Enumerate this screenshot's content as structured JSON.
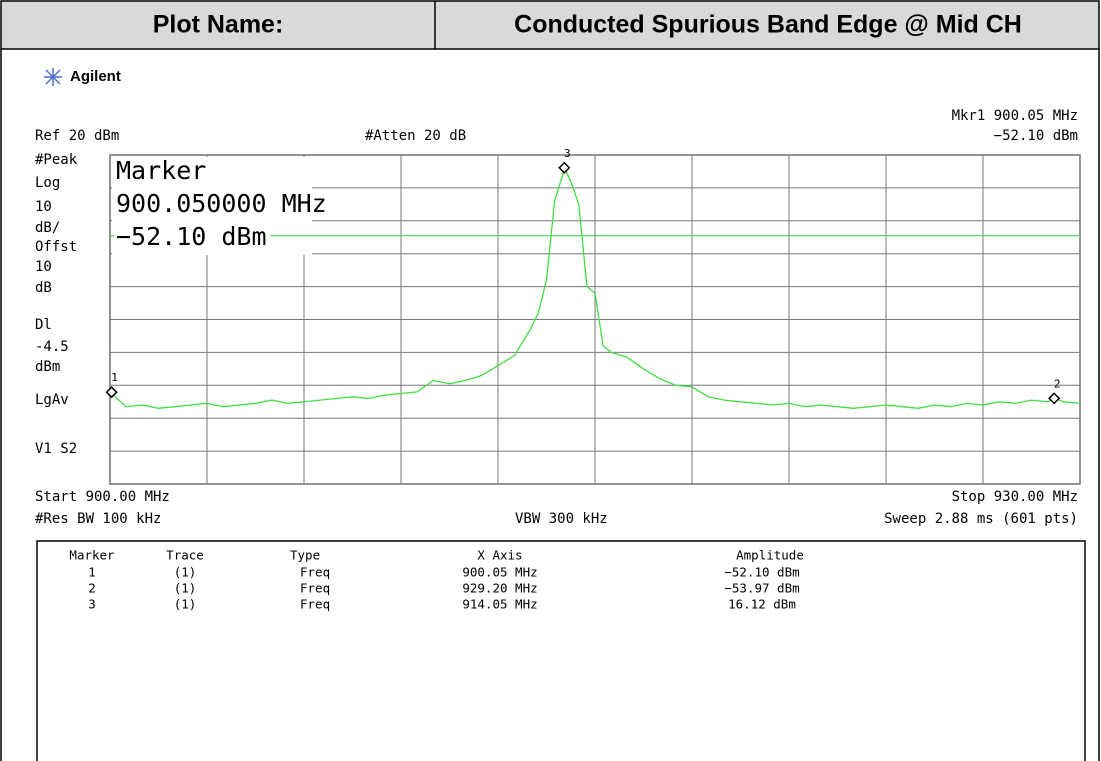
{
  "header": {
    "label": "Plot Name:",
    "title": "Conducted Spurious Band Edge @ Mid CH"
  },
  "brand": "Agilent",
  "top_right": {
    "marker": "Mkr1  900.05 MHz",
    "amplitude": "−52.10 dBm"
  },
  "ref": "Ref 20 dBm",
  "atten": "#Atten 20 dB",
  "left_labels_top": [
    "#Peak",
    "Log",
    "10",
    "dB/",
    "Offst",
    "10",
    "dB",
    "Dl"
  ],
  "left_labels_bottom": [
    "dBm",
    "LgAv",
    "V1  S2"
  ],
  "marker_box": [
    "Marker",
    "900.050000 MHz",
    "−52.10 dBm"
  ],
  "footer": {
    "start": "Start 900.00 MHz",
    "stop": "Stop 930.00 MHz",
    "rbw": "#Res BW 100 kHz",
    "vbw": "VBW 300 kHz",
    "sweep": "Sweep 2.88 ms (601 pts)"
  },
  "table": {
    "columns": [
      "Marker",
      "Trace",
      "Type",
      "X Axis",
      "Amplitude"
    ],
    "rows": [
      [
        "1",
        "(1)",
        "Freq",
        "900.05 MHz",
        "−52.10 dBm"
      ],
      [
        "2",
        "(1)",
        "Freq",
        "929.20 MHz",
        "−53.97 dBm"
      ],
      [
        "3",
        "(1)",
        "Freq",
        "914.05 MHz",
        "16.12 dBm"
      ]
    ]
  },
  "chart_data": {
    "type": "line",
    "x": [
      900,
      900.5,
      901,
      901.5,
      902,
      902.5,
      903,
      903.5,
      904,
      904.5,
      905,
      905.5,
      906,
      906.5,
      907,
      907.5,
      908,
      908.5,
      909,
      909.5,
      910,
      910.5,
      911,
      911.5,
      912,
      912.5,
      913,
      913.25,
      913.5,
      913.75,
      914,
      914.05,
      914.25,
      914.5,
      914.75,
      915,
      915.25,
      915.5,
      916,
      916.5,
      917,
      917.5,
      918,
      918.5,
      919,
      919.5,
      920,
      920.5,
      921,
      921.5,
      922,
      922.5,
      923,
      923.5,
      924,
      924.5,
      925,
      925.5,
      926,
      926.5,
      927,
      927.5,
      928,
      928.5,
      929,
      929.2,
      929.5,
      930
    ],
    "values": [
      -52.1,
      -56.5,
      -56,
      -57,
      -56.5,
      -56,
      -55.5,
      -56.5,
      -56,
      -55.5,
      -54.5,
      -55.5,
      -55,
      -54.5,
      -54,
      -53.5,
      -54,
      -53,
      -52.5,
      -52,
      -48.5,
      -49.5,
      -48.5,
      -47,
      -44,
      -41,
      -33,
      -28,
      -18,
      6,
      14,
      16.12,
      12,
      5,
      -20,
      -22,
      -38,
      -40,
      -41.5,
      -45,
      -48,
      -50,
      -50.5,
      -53.5,
      -54.5,
      -55,
      -55.5,
      -56,
      -55.5,
      -56.5,
      -56,
      -56.5,
      -57,
      -56.5,
      -56,
      -56.5,
      -57,
      -56,
      -56.5,
      -55.5,
      -56,
      -55,
      -55.5,
      -54.5,
      -55,
      -53.97,
      -55,
      -55.5
    ],
    "color": "#3fe03f",
    "xlim": [
      900,
      930
    ],
    "ylim": [
      -80,
      20
    ],
    "xticks": [
      900,
      903,
      906,
      909,
      912,
      915,
      918,
      921,
      924,
      927,
      930
    ],
    "yticks": [
      20,
      10,
      0,
      -10,
      -20,
      -30,
      -40,
      -50,
      -60,
      -70,
      -80
    ],
    "grid": true,
    "display_line": -4.5,
    "markers": [
      {
        "label": "1",
        "x": 900.05,
        "value": -52.1
      },
      {
        "label": "2",
        "x": 929.2,
        "value": -53.97
      },
      {
        "label": "3",
        "x": 914.05,
        "value": 16.12
      }
    ]
  }
}
